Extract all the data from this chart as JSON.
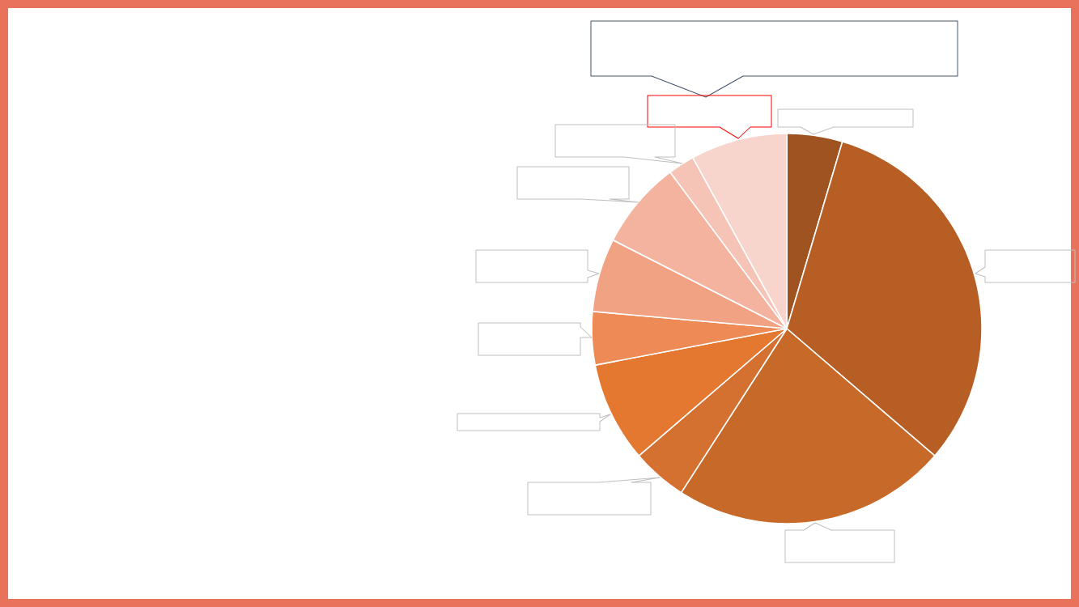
{
  "chart_data": {
    "type": "pie",
    "categories": [
      null,
      null,
      null,
      null,
      null,
      null,
      null,
      null,
      null,
      null
    ],
    "values": [
      4.6,
      31.7,
      22.8,
      4.6,
      8.3,
      4.4,
      6.1,
      7.3,
      2.2,
      8.0
    ],
    "colors": [
      "#9e5320",
      "#b75e24",
      "#c76a29",
      "#d47030",
      "#e47830",
      "#ee8a55",
      "#f0a283",
      "#f3b39f",
      "#f5c4b6",
      "#f7d5cc"
    ]
  }
}
